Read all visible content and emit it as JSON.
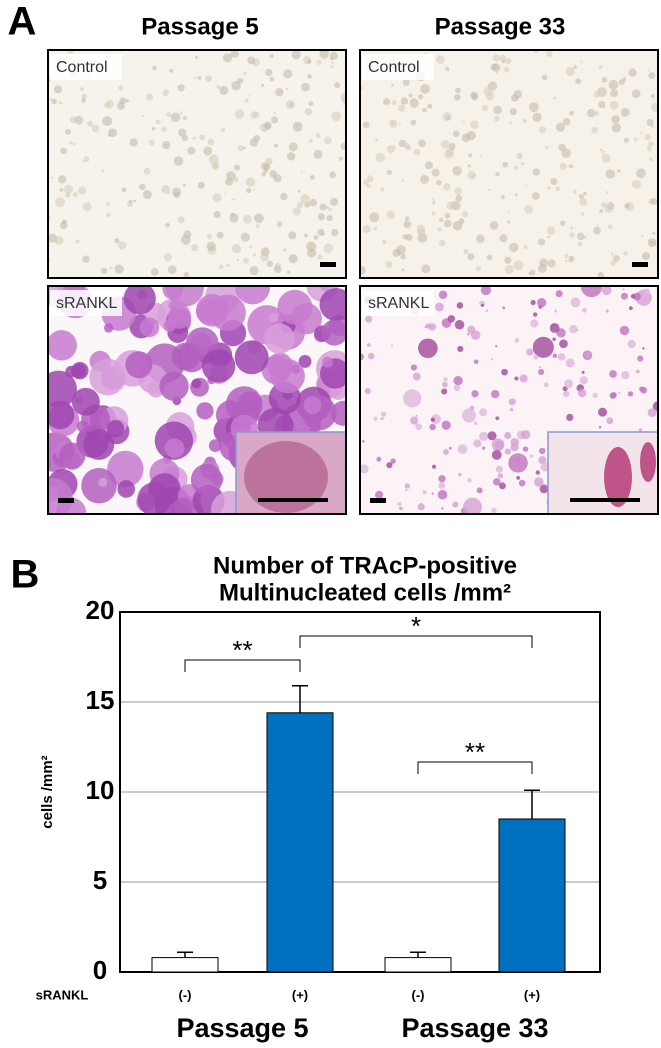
{
  "panel_a": {
    "label": "A",
    "columns": [
      "Passage 5",
      "Passage 33"
    ],
    "rows": [
      "Control",
      "sRANKL"
    ]
  },
  "chart_data": {
    "type": "bar",
    "panel_label": "B",
    "title": [
      "Number of TRAcP-positive",
      "Multinucleated cells /mm²"
    ],
    "ylabel": "cells /mm²",
    "row_label": "sRANKL",
    "categories": [
      "(-)",
      "(+)",
      "(-)",
      "(+)"
    ],
    "values": [
      0.8,
      14.4,
      0.8,
      8.5
    ],
    "errors": [
      0.3,
      1.5,
      0.3,
      1.6
    ],
    "colors": [
      "#ffffff",
      "#0070c0",
      "#ffffff",
      "#0070c0"
    ],
    "groups": [
      "Passage 5",
      "Passage 33"
    ],
    "significance": [
      {
        "text": "**",
        "from": 0,
        "to": 1
      },
      {
        "text": "*",
        "from": 1,
        "to": 3
      },
      {
        "text": "**",
        "from": 2,
        "to": 3
      }
    ],
    "ylim": [
      0,
      20
    ],
    "yticks": [
      0,
      5,
      10,
      15,
      20
    ],
    "grid": true
  }
}
